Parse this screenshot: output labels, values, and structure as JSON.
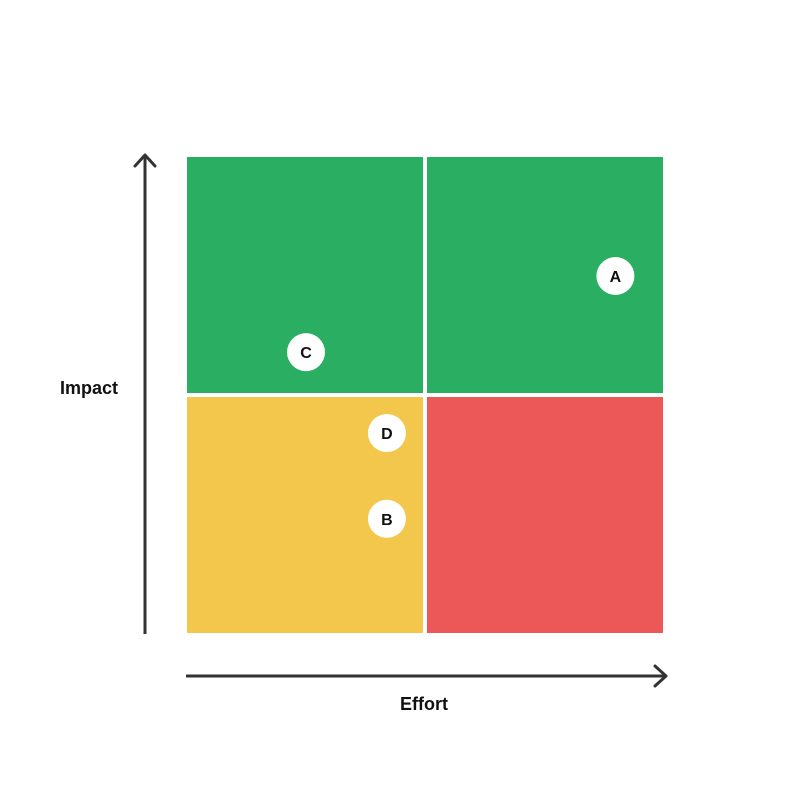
{
  "axes": {
    "y_label": "Impact",
    "x_label": "Effort"
  },
  "quadrants": [
    {
      "id": "top-left",
      "color": "#2aae62"
    },
    {
      "id": "top-right",
      "color": "#2aae62"
    },
    {
      "id": "bottom-left",
      "color": "#f2c74c"
    },
    {
      "id": "bottom-right",
      "color": "#ec5858"
    }
  ],
  "markers": [
    {
      "label": "A",
      "effort": 0.9,
      "impact": 0.75
    },
    {
      "label": "B",
      "effort": 0.42,
      "impact": 0.24
    },
    {
      "label": "C",
      "effort": 0.25,
      "impact": 0.59
    },
    {
      "label": "D",
      "effort": 0.42,
      "impact": 0.42
    }
  ],
  "colors": {
    "axis": "#333333",
    "marker_fill": "#ffffff",
    "marker_text": "#111111"
  }
}
